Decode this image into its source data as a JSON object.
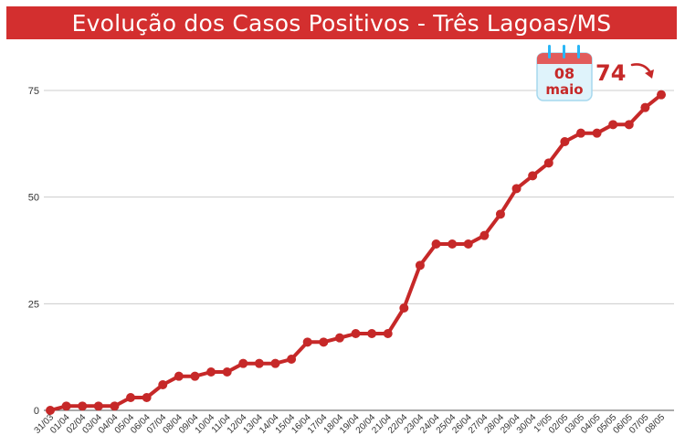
{
  "title": "Evolução dos Casos Positivos - Três Lagoas/MS",
  "colors": {
    "title_bar": "#d32f2f",
    "line": "#c62828",
    "grid": "#cccccc",
    "calendar_rings": "#29b6f6",
    "calendar_bg": "#dff3fb"
  },
  "callout": {
    "day": "08",
    "month": "maio",
    "value": "74",
    "icon": "calendar-icon",
    "arrow_icon": "curved-arrow-icon"
  },
  "chart_data": {
    "type": "line",
    "title": "Evolução dos Casos Positivos - Três Lagoas/MS",
    "xlabel": "",
    "ylabel": "",
    "ylim": [
      0,
      85
    ],
    "yticks": [
      0,
      25,
      50,
      75
    ],
    "grid": true,
    "categories": [
      "31/03",
      "01/04",
      "02/04",
      "03/04",
      "04/04",
      "05/04",
      "06/04",
      "07/04",
      "08/04",
      "09/04",
      "10/04",
      "11/04",
      "12/04",
      "13/04",
      "14/04",
      "15/04",
      "16/04",
      "17/04",
      "18/04",
      "19/04",
      "20/04",
      "21/04",
      "22/04",
      "23/04",
      "24/04",
      "25/04",
      "26/04",
      "27/04",
      "28/04",
      "29/04",
      "30/04",
      "1º/05",
      "02/05",
      "03/05",
      "04/05",
      "05/05",
      "06/05",
      "07/05",
      "08/05"
    ],
    "values": [
      0,
      1,
      1,
      1,
      1,
      3,
      3,
      6,
      8,
      8,
      9,
      9,
      11,
      11,
      11,
      12,
      16,
      16,
      17,
      18,
      18,
      18,
      24,
      34,
      39,
      39,
      39,
      41,
      46,
      52,
      55,
      58,
      63,
      65,
      65,
      67,
      67,
      71,
      74
    ]
  }
}
